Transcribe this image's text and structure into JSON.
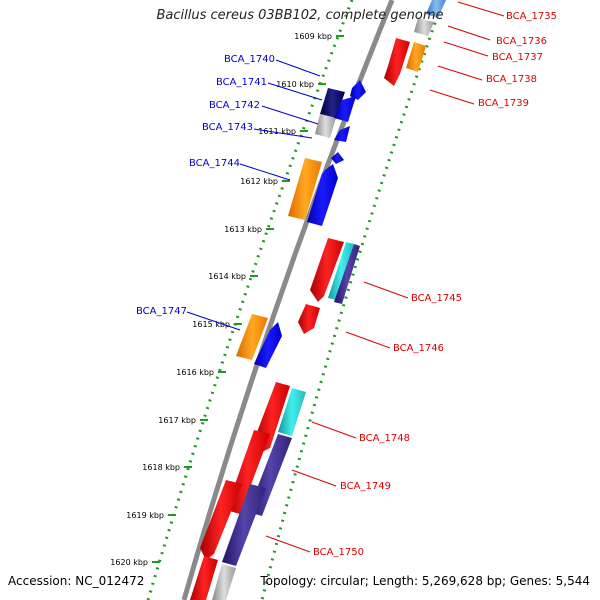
{
  "title": "Bacillus cereus 03BB102, complete genome",
  "footer": {
    "accession": "Accession: NC_012472",
    "summary": "Topology: circular; Length: 5,269,628 bp; Genes: 5,544"
  },
  "ticks": [
    "1609 kbp",
    "1610 kbp",
    "1611 kbp",
    "1612 kbp",
    "1613 kbp",
    "1614 kbp",
    "1615 kbp",
    "1616 kbp",
    "1617 kbp",
    "1618 kbp",
    "1619 kbp",
    "1620 kbp"
  ],
  "colors": {
    "blue_label": "#0000cc",
    "red_label": "#dd0000",
    "red_gene": "#ee1111",
    "blue_gene": "#0000ee",
    "navy_gene": "#000066",
    "orange_gene": "#ff8800",
    "cyan_gene": "#22cccc",
    "purple_gene": "#443388",
    "gray_gene": "#b0b0b0",
    "backbone": "#888888",
    "dotted_track": "#229922"
  },
  "left_labels": [
    "BCA_1740",
    "BCA_1741",
    "BCA_1742",
    "BCA_1743",
    "BCA_1744",
    "BCA_1747"
  ],
  "right_labels": [
    "BCA_1735",
    "BCA_1736",
    "BCA_1737",
    "BCA_1738",
    "BCA_1739",
    "BCA_1745",
    "BCA_1746",
    "BCA_1748",
    "BCA_1749",
    "BCA_1750"
  ]
}
